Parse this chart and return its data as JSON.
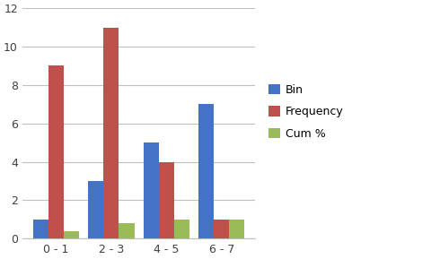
{
  "categories": [
    "0 - 1",
    "2 - 3",
    "4 - 5",
    "6 - 7"
  ],
  "bin_values": [
    1,
    3,
    5,
    7
  ],
  "frequency_values": [
    9,
    11,
    4,
    1
  ],
  "cum_pct_values": [
    0.4,
    0.8,
    1.0,
    1.0
  ],
  "bar_colors": {
    "Bin": "#4472C4",
    "Frequency": "#C0504D",
    "Cum %": "#9BBB59"
  },
  "legend_labels": [
    "Bin",
    "Frequency",
    "Cum %"
  ],
  "ylim": [
    0,
    12
  ],
  "yticks": [
    0,
    2,
    4,
    6,
    8,
    10,
    12
  ],
  "background_color": "#FFFFFF",
  "plot_bg_color": "#FFFFFF",
  "grid_color": "#BFBFBF",
  "title": "",
  "xlabel": "",
  "ylabel": ""
}
